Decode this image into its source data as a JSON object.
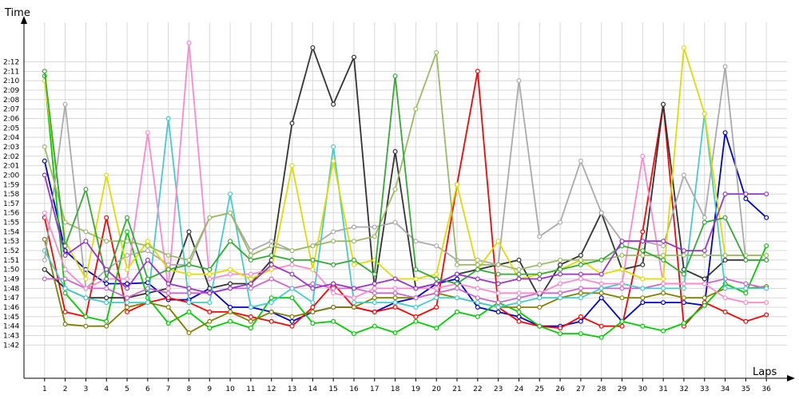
{
  "chart_data": {
    "type": "line",
    "xlabel": "Laps",
    "ylabel": "Time",
    "x": [
      1,
      2,
      3,
      4,
      5,
      6,
      7,
      8,
      9,
      10,
      11,
      12,
      13,
      14,
      15,
      16,
      17,
      18,
      19,
      20,
      21,
      22,
      23,
      24,
      25,
      26,
      27,
      28,
      29,
      30,
      31,
      32,
      33,
      34,
      35,
      36
    ],
    "xlim": [
      0,
      37
    ],
    "ylim_seconds": [
      100,
      135
    ],
    "ytick_labels": [
      "1:42",
      "1:43",
      "1:44",
      "1:45",
      "1:46",
      "1:47",
      "1:48",
      "1:49",
      "1:50",
      "1:51",
      "1:52",
      "1:53",
      "1:54",
      "1:55",
      "1:56",
      "1:57",
      "1:58",
      "1:59",
      "2:00",
      "2:01",
      "2:02",
      "2:03",
      "2:04",
      "2:05",
      "2:06",
      "2:07",
      "2:08",
      "2:09",
      "2:10",
      "2:11",
      "2:12"
    ],
    "grid": true,
    "legend": "none",
    "series": [
      {
        "color": "#0000cc",
        "values": [
          121.5,
          112,
          110,
          108.5,
          108.5,
          108.6,
          106.8,
          106.8,
          108,
          106,
          106,
          105.5,
          104.5,
          105.5,
          106,
          106,
          105.5,
          106.5,
          107,
          108.5,
          109,
          106,
          105.5,
          105,
          104,
          104,
          104.5,
          107,
          104.5,
          106.5,
          106.5,
          106.5,
          106.2,
          124.5,
          117.5,
          115.5
        ]
      },
      {
        "color": "#ff0000",
        "values": [
          115.5,
          105.5,
          105,
          115.5,
          105.5,
          106.5,
          107,
          106.5,
          105.5,
          105.5,
          105,
          104.5,
          104,
          106,
          108.5,
          106,
          105.5,
          106,
          105,
          106,
          119,
          131,
          106,
          104.5,
          104,
          103.8,
          105,
          104,
          104,
          114,
          127.5,
          104,
          106.5,
          105.5,
          104.5,
          105.2
        ]
      },
      {
        "color": "#00cc00",
        "values": [
          130.5,
          107.5,
          105,
          104.5,
          114,
          107,
          104.3,
          105.5,
          103.8,
          104.5,
          103.8,
          107,
          107,
          104.3,
          104.5,
          103.2,
          104,
          103.3,
          104.5,
          103.8,
          105.5,
          105,
          106.5,
          105.5,
          104,
          103.2,
          103.2,
          102.8,
          104.5,
          104,
          103.5,
          104.3,
          106.2,
          108.5,
          107.5,
          112.5
        ]
      },
      {
        "color": "#808000",
        "values": [
          113.2,
          104.2,
          104,
          104,
          106,
          106.5,
          106,
          103.3,
          104.5,
          105.5,
          104.5,
          105.5,
          105,
          105.5,
          106,
          106,
          107,
          107,
          107,
          107.5,
          107,
          106.5,
          106,
          106,
          106,
          107,
          107.5,
          107.5,
          107,
          107,
          107.5,
          107,
          107,
          108,
          108,
          108.2
        ]
      },
      {
        "color": "#333333",
        "values": [
          110,
          108,
          107,
          107,
          107,
          107.5,
          108,
          114,
          108,
          108.5,
          108.5,
          111,
          125.5,
          133.5,
          127.5,
          132.5,
          108,
          122.5,
          108,
          108.5,
          109.5,
          110,
          110.5,
          111,
          107,
          110.5,
          111.5,
          116,
          110,
          110.5,
          127.5,
          110,
          109,
          111,
          111,
          111
        ]
      },
      {
        "color": "#cc66cc",
        "values": [
          109,
          109,
          108,
          108,
          107,
          108,
          107.5,
          107.5,
          107.5,
          108,
          108,
          109,
          108,
          108.5,
          108,
          108,
          107.5,
          107.5,
          107,
          107.5,
          108,
          107,
          106.5,
          107,
          107.5,
          107.5,
          108,
          108,
          108,
          108,
          108.5,
          108.5,
          108.5,
          109,
          108.5,
          108
        ]
      },
      {
        "color": "#44cccc",
        "values": [
          112,
          108,
          107,
          106.5,
          106.5,
          106.5,
          126,
          106.5,
          106.5,
          118,
          106,
          106.5,
          108,
          106.5,
          123,
          106.5,
          106.5,
          106.5,
          106,
          107,
          107,
          106.5,
          106,
          106.5,
          107,
          107,
          107,
          108,
          108.5,
          108,
          108,
          108,
          126.5,
          108,
          108,
          108
        ]
      },
      {
        "color": "#aaaaaa",
        "values": [
          111,
          127.5,
          108,
          110,
          111.5,
          112,
          110.5,
          110.5,
          115.5,
          116,
          112,
          113,
          112,
          112.5,
          114,
          114.5,
          114.5,
          115,
          113,
          112.5,
          111,
          111,
          110.5,
          130,
          113.5,
          115,
          121.5,
          116,
          113,
          113,
          112.5,
          120,
          115.5,
          131.5,
          111,
          111
        ]
      },
      {
        "color": "#ff88cc",
        "values": [
          116,
          110,
          108,
          109,
          109,
          124.5,
          108,
          134,
          109,
          109.5,
          109.5,
          110,
          110.5,
          110,
          107.5,
          107,
          108,
          108,
          108,
          108,
          108.5,
          108,
          107.5,
          107.5,
          107.5,
          108.5,
          109,
          108.5,
          108.5,
          122,
          108.5,
          108.5,
          108.5,
          107,
          106.5,
          106.5
        ]
      },
      {
        "color": "#dddd00",
        "values": [
          130,
          113,
          109,
          120,
          110,
          113,
          110,
          109.5,
          109.5,
          110,
          109,
          110,
          121,
          110,
          121.5,
          110.5,
          111,
          109,
          109,
          109.5,
          119,
          110,
          113,
          109,
          109.5,
          110,
          111,
          109.5,
          110,
          109,
          109,
          133.5,
          126.5,
          111.5,
          111.5,
          111.5
        ]
      },
      {
        "color": "#99bb66",
        "values": [
          123,
          115,
          114,
          113,
          113,
          112.5,
          111.5,
          111,
          115.5,
          116,
          111.5,
          112.5,
          112,
          112.5,
          113,
          113,
          113.5,
          118.5,
          127,
          133,
          110.5,
          110.5,
          110.5,
          110,
          110.5,
          111,
          111,
          111,
          111.5,
          111.5,
          111.5,
          111.5,
          111.5,
          111.5,
          111.5,
          111.5
        ]
      },
      {
        "color": "#33aa33",
        "values": [
          131,
          112.5,
          118.5,
          109,
          115.5,
          109,
          110,
          110.5,
          110,
          113,
          111,
          111.5,
          111,
          111,
          110.5,
          111,
          109.5,
          130.5,
          110,
          109,
          108.5,
          110,
          109.5,
          109.5,
          109.5,
          110,
          110.5,
          111,
          112.5,
          112,
          111,
          109.5,
          115,
          115.5,
          111,
          111
        ]
      },
      {
        "color": "#9933cc",
        "values": [
          120,
          111.5,
          113,
          110,
          108,
          111,
          108.5,
          108,
          107.5,
          108,
          108.5,
          110.5,
          109.5,
          108,
          108.5,
          108,
          108.5,
          109,
          108,
          108.5,
          109.5,
          109,
          108.5,
          109,
          109,
          109.5,
          109.5,
          109.5,
          113,
          113,
          113,
          112,
          112,
          118,
          118,
          118
        ]
      }
    ]
  }
}
